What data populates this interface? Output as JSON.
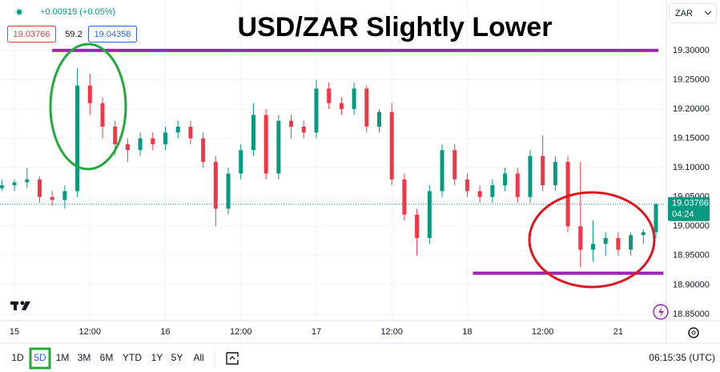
{
  "chart_data": {
    "type": "candlestick",
    "title": "USD/ZAR Slightly Lower",
    "x": [
      -2,
      0,
      2,
      4,
      6,
      8,
      10,
      12,
      14,
      16,
      18,
      20,
      22,
      24,
      26,
      28,
      30,
      32,
      34,
      36,
      38,
      40,
      42,
      44,
      46,
      48,
      50,
      52,
      54,
      56,
      58,
      60,
      62,
      64,
      66,
      68,
      70,
      72,
      74,
      76,
      78,
      80,
      82,
      84,
      86,
      88,
      90,
      92,
      94,
      96,
      98,
      100,
      102
    ],
    "open": [
      19.065,
      19.07,
      19.075,
      19.08,
      19.05,
      19.045,
      19.06,
      19.24,
      19.21,
      19.17,
      19.14,
      19.13,
      19.15,
      19.14,
      19.16,
      19.17,
      19.15,
      19.11,
      19.03,
      19.09,
      19.13,
      19.19,
      19.09,
      19.18,
      19.17,
      19.16,
      19.235,
      19.21,
      19.2,
      19.235,
      19.17,
      19.195,
      19.08,
      19.02,
      18.98,
      19.06,
      19.13,
      19.08,
      19.06,
      19.05,
      19.07,
      19.09,
      19.05,
      19.12,
      19.07,
      19.11,
      19.0,
      18.96,
      18.97,
      18.98,
      18.96,
      18.985,
      18.99
    ],
    "high": [
      19.08,
      19.08,
      19.1,
      19.085,
      19.06,
      19.07,
      19.27,
      19.26,
      19.22,
      19.18,
      19.15,
      19.16,
      19.16,
      19.17,
      19.18,
      19.18,
      19.16,
      19.12,
      19.1,
      19.14,
      19.21,
      19.2,
      19.19,
      19.19,
      19.18,
      19.25,
      19.245,
      19.22,
      19.245,
      19.24,
      19.2,
      19.21,
      19.09,
      19.03,
      19.07,
      19.14,
      19.14,
      19.09,
      19.07,
      19.08,
      19.1,
      19.1,
      19.13,
      19.155,
      19.12,
      19.12,
      19.11,
      19.01,
      18.99,
      18.99,
      18.99,
      18.995,
      19.04
    ],
    "low": [
      19.06,
      19.06,
      19.065,
      19.04,
      19.035,
      19.03,
      19.05,
      19.19,
      19.15,
      19.12,
      19.11,
      19.12,
      19.13,
      19.13,
      19.15,
      19.14,
      19.1,
      19.0,
      19.02,
      19.08,
      19.12,
      19.08,
      19.08,
      19.15,
      19.15,
      19.15,
      19.2,
      19.19,
      19.19,
      19.16,
      19.16,
      19.07,
      19.01,
      18.95,
      18.97,
      19.05,
      19.07,
      19.05,
      19.04,
      19.04,
      19.06,
      19.04,
      19.04,
      19.06,
      19.06,
      18.99,
      18.93,
      18.94,
      18.95,
      18.95,
      18.95,
      18.97,
      18.98
    ],
    "close": [
      19.07,
      19.075,
      19.08,
      19.05,
      19.045,
      19.06,
      19.24,
      19.21,
      19.17,
      19.14,
      19.13,
      19.15,
      19.14,
      19.16,
      19.17,
      19.15,
      19.11,
      19.03,
      19.09,
      19.13,
      19.19,
      19.09,
      19.18,
      19.17,
      19.16,
      19.235,
      19.21,
      19.2,
      19.235,
      19.17,
      19.195,
      19.08,
      19.02,
      18.98,
      19.06,
      19.13,
      19.08,
      19.06,
      19.05,
      19.07,
      19.09,
      19.05,
      19.12,
      19.07,
      19.11,
      19.0,
      18.96,
      18.97,
      18.98,
      18.96,
      18.985,
      18.99,
      19.03766
    ],
    "up_color": "#089981",
    "down_color": "#f23645",
    "xlim": [
      -2.3,
      103.4
    ],
    "xticks": [
      {
        "value": 0,
        "label": "15"
      },
      {
        "value": 12,
        "label": "12:00"
      },
      {
        "value": 24,
        "label": "16"
      },
      {
        "value": 36,
        "label": "12:00"
      },
      {
        "value": 48,
        "label": "17"
      },
      {
        "value": 60,
        "label": "12:00"
      },
      {
        "value": 72,
        "label": "18"
      },
      {
        "value": 84,
        "label": "12:00"
      },
      {
        "value": 96,
        "label": "21"
      }
    ],
    "ylim": [
      18.839,
      19.386
    ],
    "yticks": [
      {
        "value": 18.85,
        "label": "18.85000"
      },
      {
        "value": 18.9,
        "label": "18.90000"
      },
      {
        "value": 18.95,
        "label": "18.95000"
      },
      {
        "value": 19.0,
        "label": "19.00000"
      },
      {
        "value": 19.05,
        "label": "19.05000"
      },
      {
        "value": 19.1,
        "label": "19.10000"
      },
      {
        "value": 19.15,
        "label": "19.15000"
      },
      {
        "value": 19.2,
        "label": "19.20000"
      },
      {
        "value": 19.25,
        "label": "19.25000"
      },
      {
        "value": 19.3,
        "label": "19.30000"
      }
    ],
    "grid": true,
    "levels": [
      {
        "value": 19.3,
        "x": [
          6.0,
          102.4
        ],
        "color": "#9c27b0"
      },
      {
        "value": 18.92,
        "x": [
          72.9,
          103.2
        ],
        "color": "#9c27b0"
      }
    ],
    "countdown": "04:24"
  },
  "ui": {
    "change": "+0.00919 (+0.05%)",
    "sell": "19.03766",
    "spread": "59.2",
    "buy": "19.04358",
    "currency": "ZAR",
    "periods": [
      "1D",
      "5D",
      "1M",
      "3M",
      "6M",
      "YTD",
      "1Y",
      "5Y",
      "All"
    ],
    "clock": "06:15:35 (UTC)"
  }
}
